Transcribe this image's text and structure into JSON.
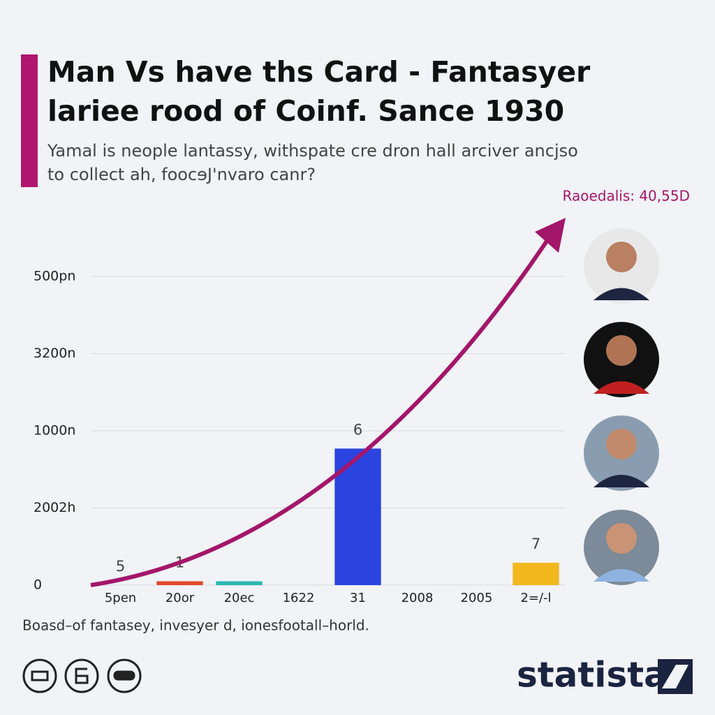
{
  "chart_data": {
    "type": "bar",
    "title": [
      "Man Vs have ths Card - Fantasyer",
      "lariee rood of Coinf. Sance 1930"
    ],
    "subtitle": [
      "Yamal is neople lantassy, withspate cre dron hall arciver ancjso",
      "to collect ah, foocɘJ'nvaro canr?"
    ],
    "annotation": "Raoedalis: 40,55D",
    "categories": [
      "5pen",
      "20or",
      "20ec",
      "1622",
      "31",
      "2008",
      "2005",
      "2=/-l"
    ],
    "values": [
      0,
      0.05,
      0.05,
      0,
      1.77,
      0,
      0,
      0.29
    ],
    "bar_labels": [
      "5",
      "1",
      null,
      null,
      "6",
      null,
      null,
      "7"
    ],
    "colors": [
      "#e04a2a",
      "#e04a2a",
      "#2bb7b0",
      "#2bb7b0",
      "#2b44e0",
      "#2b44e0",
      "#f2b81e",
      "#f2b81e"
    ],
    "ylim": [
      0,
      4
    ],
    "yticks": [
      0,
      {
        "value": 1,
        "label": "2002h"
      },
      {
        "value": 2,
        "label": "1000n"
      },
      {
        "value": 3,
        "label": "3200n"
      },
      {
        "value": 4,
        "label": "500pn"
      }
    ],
    "grid": true,
    "source": "Boasd–of fantasey, invesyer d, ionesfootall–horld.",
    "brand": "statista"
  }
}
